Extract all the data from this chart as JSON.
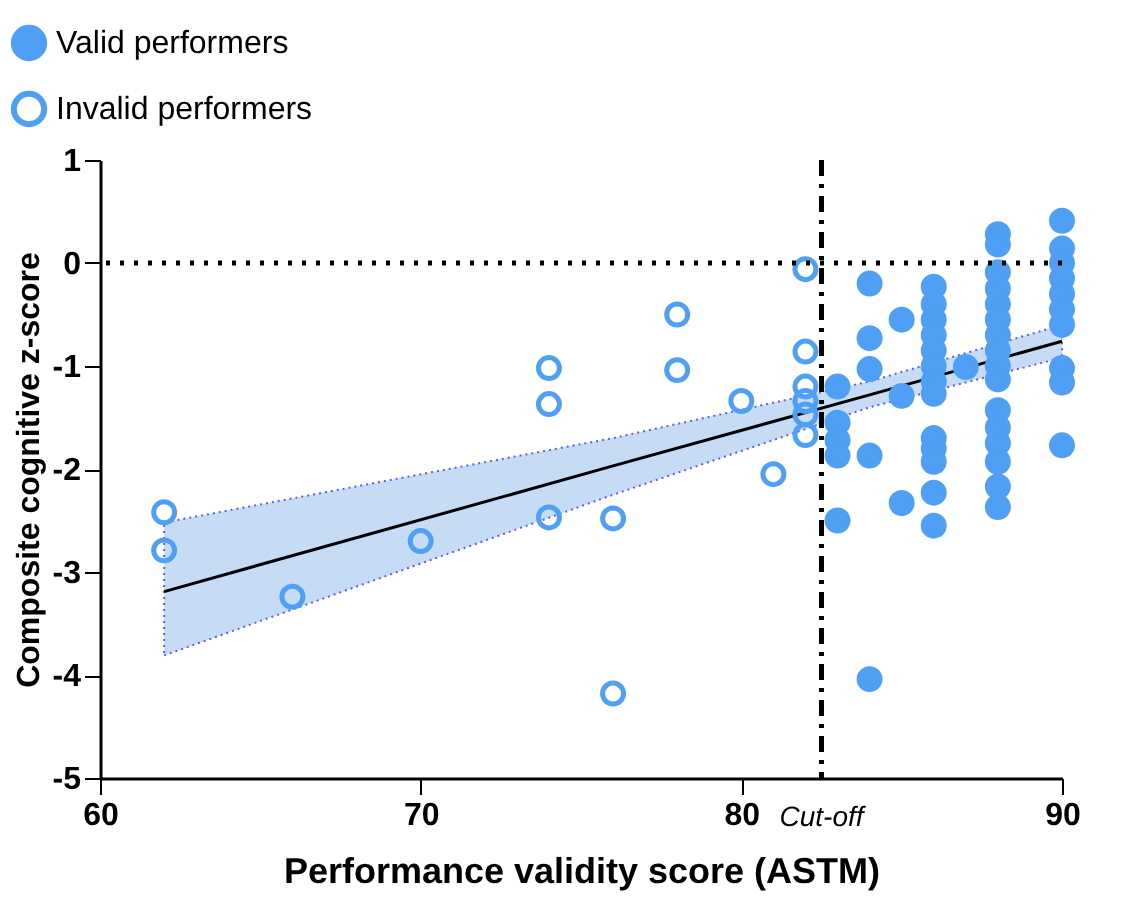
{
  "chart_data": {
    "type": "scatter",
    "xlabel": "Performance validity score (ASTM)",
    "ylabel": "Composite cognitive z-score",
    "xlim": [
      60,
      90
    ],
    "xticks": [
      60,
      70,
      80,
      90
    ],
    "ylim": [
      -5,
      1
    ],
    "yticks": [
      -5,
      -4,
      -3,
      -2,
      -1,
      0,
      1
    ],
    "grid": false,
    "legend": "top left",
    "ref_lines": [
      {
        "axis": "y",
        "value": 0,
        "line_style": "dotted",
        "color": "#000000"
      },
      {
        "axis": "x",
        "value": 82.5,
        "label": "Cut-off",
        "line_style": "dashdot",
        "color": "#000000"
      }
    ],
    "series": [
      {
        "name": "Valid performers",
        "color": "#4f9ff5",
        "marker": "circle",
        "x": [
          83,
          83,
          83,
          83,
          83,
          84,
          84,
          84,
          84,
          84,
          85,
          85,
          85,
          86,
          86,
          86,
          86,
          86,
          86,
          86,
          86,
          86,
          86,
          86,
          86,
          86,
          87,
          88,
          88,
          88,
          88,
          88,
          88,
          88,
          88,
          88,
          88,
          88,
          88,
          88,
          88,
          88,
          88,
          90,
          90,
          90,
          90,
          90,
          90,
          90,
          90,
          90,
          90
        ],
        "values": [
          -1.2,
          -1.55,
          -1.72,
          -1.87,
          -2.5,
          -0.2,
          -0.73,
          -1.03,
          -1.87,
          -4.04,
          -0.55,
          -1.29,
          -2.33,
          -0.23,
          -0.4,
          -0.55,
          -0.7,
          -0.85,
          -1.0,
          -1.15,
          -1.27,
          -1.7,
          -1.8,
          -1.93,
          -2.23,
          -2.55,
          -1.01,
          0.28,
          0.18,
          -0.09,
          -0.25,
          -0.4,
          -0.55,
          -0.7,
          -0.85,
          -1.0,
          -1.13,
          -1.43,
          -1.6,
          -1.75,
          -1.93,
          -2.17,
          -2.37,
          0.41,
          0.14,
          0.0,
          -0.15,
          -0.3,
          -0.45,
          -0.6,
          -1.02,
          -1.16,
          -1.77
        ]
      },
      {
        "name": "Invalid performers",
        "color": "#4f9ff5",
        "marker": "circle",
        "x": [
          62,
          62,
          66,
          70,
          74,
          74,
          74,
          76,
          76,
          78,
          78,
          80,
          81,
          82,
          82,
          82,
          82,
          82,
          82
        ],
        "values": [
          -2.42,
          -2.79,
          -3.24,
          -2.7,
          -1.02,
          -1.37,
          -2.47,
          -4.18,
          -2.48,
          -0.5,
          -1.04,
          -1.34,
          -2.05,
          -0.06,
          -0.86,
          -1.2,
          -1.34,
          -1.47,
          -1.67
        ]
      },
      {
        "type": "line",
        "color": "#000000",
        "x": [
          62,
          76,
          84,
          90
        ],
        "values": [
          -3.19,
          -1.97,
          -1.28,
          -0.76
        ],
        "lower": [
          -3.81,
          -2.25,
          -1.4,
          -0.92
        ],
        "upper": [
          -2.52,
          -1.7,
          -1.15,
          -0.6
        ]
      }
    ]
  }
}
